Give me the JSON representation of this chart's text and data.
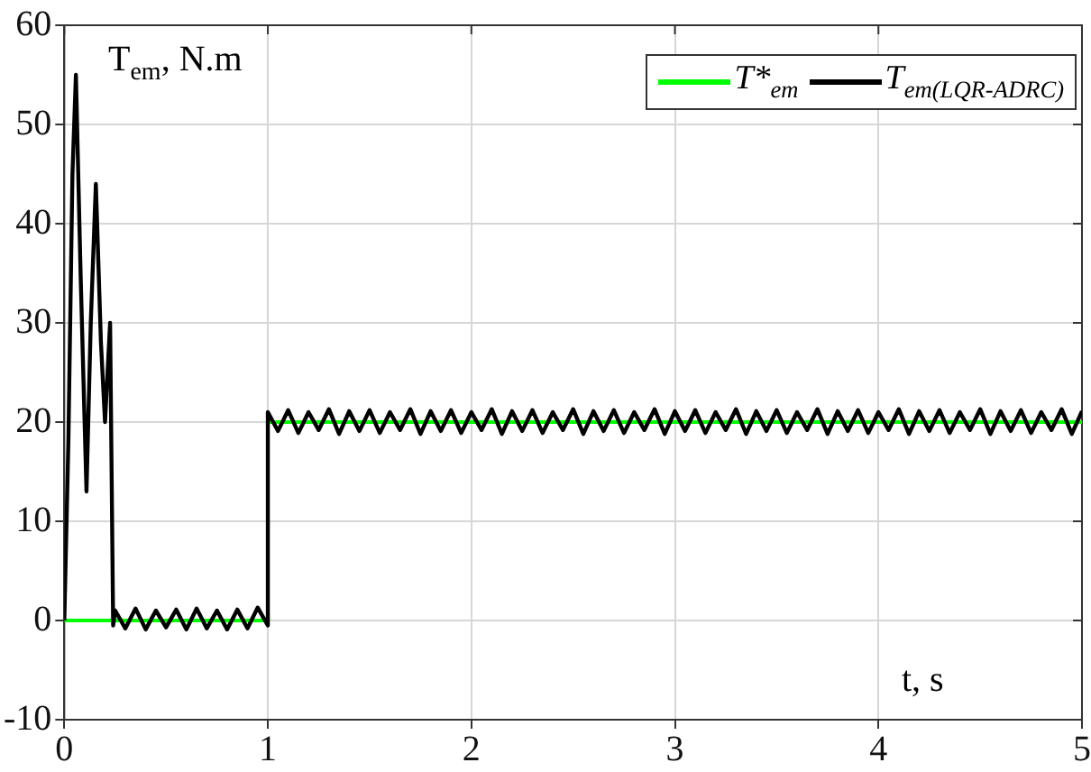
{
  "chart_data": {
    "type": "line",
    "xlabel": "t, s",
    "ylabel": "T$_{em}$, N.m",
    "xlim": [
      0,
      5
    ],
    "ylim": [
      -10,
      60
    ],
    "xticks": [
      0,
      1,
      2,
      3,
      4,
      5
    ],
    "yticks": [
      -10,
      0,
      10,
      20,
      30,
      40,
      50,
      60
    ],
    "grid": true,
    "legend": "top right",
    "marker": "none",
    "line_style": "solid",
    "series": [
      {
        "name": "T*$_{em}$",
        "color": "#00ff00",
        "x": [
          0,
          1,
          1,
          5
        ],
        "values": [
          0,
          0,
          20,
          20
        ]
      },
      {
        "name": "T$_{em(LQR-ADRC)}$",
        "color": "#000000",
        "x": [
          0,
          0.02,
          0.04,
          0.057,
          0.08,
          0.109,
          0.13,
          0.155,
          0.18,
          0.2,
          0.225,
          0.24,
          0.25,
          0.3,
          0.35,
          0.4,
          0.45,
          0.5,
          0.55,
          0.6,
          0.65,
          0.7,
          0.75,
          0.8,
          0.85,
          0.9,
          0.95,
          1,
          1,
          1.05,
          1.1,
          1.15,
          1.2,
          1.25,
          1.3,
          1.35,
          1.4,
          1.45,
          1.5,
          1.55,
          1.6,
          1.65,
          1.7,
          1.75,
          1.8,
          1.85,
          1.9,
          1.95,
          2,
          2.05,
          2.1,
          2.15,
          2.2,
          2.25,
          2.3,
          2.35,
          2.4,
          2.45,
          2.5,
          2.55,
          2.6,
          2.65,
          2.7,
          2.75,
          2.8,
          2.85,
          2.9,
          2.95,
          3,
          3.05,
          3.1,
          3.15,
          3.2,
          3.25,
          3.3,
          3.35,
          3.4,
          3.45,
          3.5,
          3.55,
          3.6,
          3.65,
          3.7,
          3.75,
          3.8,
          3.85,
          3.9,
          3.95,
          4,
          4.05,
          4.1,
          4.15,
          4.2,
          4.25,
          4.3,
          4.35,
          4.4,
          4.45,
          4.5,
          4.55,
          4.6,
          4.65,
          4.7,
          4.75,
          4.8,
          4.85,
          4.9,
          4.95,
          5
        ],
        "values": [
          0,
          18,
          45,
          55,
          35,
          13,
          30,
          44,
          28,
          20,
          30,
          -0.5,
          1,
          -0.8,
          1.2,
          -0.9,
          1,
          -0.7,
          1.1,
          -0.9,
          1.2,
          -0.8,
          1,
          -0.9,
          1.1,
          -0.8,
          1.3,
          -0.5,
          21,
          19.1,
          21.2,
          18.9,
          21,
          19.2,
          21.3,
          18.8,
          21.1,
          19.1,
          21.2,
          18.9,
          21,
          19.2,
          21.3,
          18.8,
          21.1,
          19.1,
          21.2,
          18.9,
          21,
          19.2,
          21.3,
          18.8,
          21.1,
          19.1,
          21.2,
          18.9,
          21,
          19.2,
          21.3,
          18.8,
          21.1,
          19.1,
          21.2,
          18.9,
          21,
          19.2,
          21.3,
          18.8,
          21.1,
          19.1,
          21.2,
          18.9,
          21,
          19.2,
          21.3,
          18.8,
          21.1,
          19.1,
          21.2,
          18.9,
          21,
          19.2,
          21.3,
          18.8,
          21.1,
          19.1,
          21.2,
          18.9,
          21,
          19.2,
          21.3,
          18.8,
          21.1,
          19.1,
          21.2,
          18.9,
          21,
          19.2,
          21.3,
          18.8,
          21.1,
          19.1,
          21.2,
          18.9,
          21,
          19.2,
          21.3,
          18.8,
          21.1
        ]
      }
    ]
  }
}
